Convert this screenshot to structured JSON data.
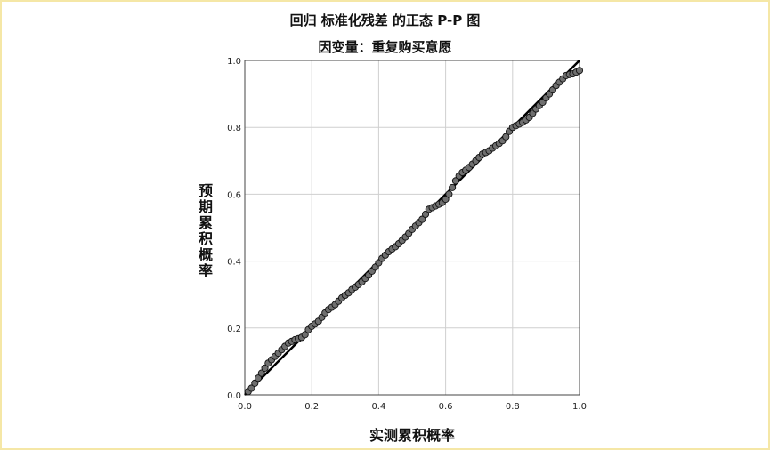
{
  "chart_data": {
    "type": "scatter",
    "title": "回归 标准化残差 的正态 P-P 图",
    "subtitle": "因变量：重复购买意愿",
    "xlabel": "实测累积概率",
    "ylabel": "预期累积概率",
    "xlim": [
      0,
      1
    ],
    "ylim": [
      0,
      1
    ],
    "xticks": [
      "0.0",
      "0.2",
      "0.4",
      "0.6",
      "0.8",
      "1.0"
    ],
    "yticks": [
      "0.0",
      "0.2",
      "0.4",
      "0.6",
      "0.8",
      "1.0"
    ],
    "grid": true,
    "reference_line": [
      [
        0,
        0
      ],
      [
        1,
        1
      ]
    ],
    "series": [
      {
        "points": [
          [
            0.01,
            0.01
          ],
          [
            0.02,
            0.02
          ],
          [
            0.03,
            0.035
          ],
          [
            0.04,
            0.05
          ],
          [
            0.05,
            0.065
          ],
          [
            0.06,
            0.08
          ],
          [
            0.07,
            0.095
          ],
          [
            0.08,
            0.105
          ],
          [
            0.09,
            0.115
          ],
          [
            0.1,
            0.125
          ],
          [
            0.11,
            0.135
          ],
          [
            0.12,
            0.145
          ],
          [
            0.13,
            0.155
          ],
          [
            0.14,
            0.16
          ],
          [
            0.15,
            0.165
          ],
          [
            0.16,
            0.168
          ],
          [
            0.17,
            0.172
          ],
          [
            0.18,
            0.18
          ],
          [
            0.19,
            0.195
          ],
          [
            0.2,
            0.205
          ],
          [
            0.21,
            0.212
          ],
          [
            0.22,
            0.22
          ],
          [
            0.23,
            0.232
          ],
          [
            0.24,
            0.245
          ],
          [
            0.25,
            0.255
          ],
          [
            0.26,
            0.262
          ],
          [
            0.27,
            0.27
          ],
          [
            0.28,
            0.28
          ],
          [
            0.29,
            0.29
          ],
          [
            0.3,
            0.298
          ],
          [
            0.31,
            0.305
          ],
          [
            0.32,
            0.315
          ],
          [
            0.33,
            0.322
          ],
          [
            0.34,
            0.33
          ],
          [
            0.35,
            0.338
          ],
          [
            0.36,
            0.348
          ],
          [
            0.37,
            0.358
          ],
          [
            0.38,
            0.37
          ],
          [
            0.39,
            0.382
          ],
          [
            0.4,
            0.395
          ],
          [
            0.41,
            0.408
          ],
          [
            0.42,
            0.418
          ],
          [
            0.43,
            0.428
          ],
          [
            0.44,
            0.436
          ],
          [
            0.45,
            0.443
          ],
          [
            0.46,
            0.452
          ],
          [
            0.47,
            0.462
          ],
          [
            0.48,
            0.472
          ],
          [
            0.49,
            0.483
          ],
          [
            0.5,
            0.495
          ],
          [
            0.51,
            0.505
          ],
          [
            0.52,
            0.515
          ],
          [
            0.53,
            0.525
          ],
          [
            0.54,
            0.54
          ],
          [
            0.55,
            0.555
          ],
          [
            0.56,
            0.56
          ],
          [
            0.57,
            0.565
          ],
          [
            0.58,
            0.57
          ],
          [
            0.59,
            0.575
          ],
          [
            0.6,
            0.585
          ],
          [
            0.61,
            0.6
          ],
          [
            0.62,
            0.62
          ],
          [
            0.63,
            0.64
          ],
          [
            0.64,
            0.655
          ],
          [
            0.65,
            0.665
          ],
          [
            0.66,
            0.672
          ],
          [
            0.67,
            0.68
          ],
          [
            0.68,
            0.69
          ],
          [
            0.69,
            0.7
          ],
          [
            0.7,
            0.71
          ],
          [
            0.71,
            0.72
          ],
          [
            0.72,
            0.725
          ],
          [
            0.73,
            0.73
          ],
          [
            0.74,
            0.738
          ],
          [
            0.75,
            0.745
          ],
          [
            0.76,
            0.752
          ],
          [
            0.77,
            0.76
          ],
          [
            0.78,
            0.772
          ],
          [
            0.79,
            0.788
          ],
          [
            0.8,
            0.8
          ],
          [
            0.81,
            0.805
          ],
          [
            0.82,
            0.81
          ],
          [
            0.83,
            0.815
          ],
          [
            0.84,
            0.822
          ],
          [
            0.85,
            0.83
          ],
          [
            0.86,
            0.842
          ],
          [
            0.87,
            0.855
          ],
          [
            0.88,
            0.865
          ],
          [
            0.89,
            0.875
          ],
          [
            0.9,
            0.888
          ],
          [
            0.91,
            0.9
          ],
          [
            0.92,
            0.912
          ],
          [
            0.93,
            0.925
          ],
          [
            0.94,
            0.935
          ],
          [
            0.95,
            0.945
          ],
          [
            0.96,
            0.955
          ],
          [
            0.97,
            0.958
          ],
          [
            0.98,
            0.96
          ],
          [
            0.99,
            0.965
          ],
          [
            1.0,
            0.97
          ]
        ]
      }
    ]
  }
}
